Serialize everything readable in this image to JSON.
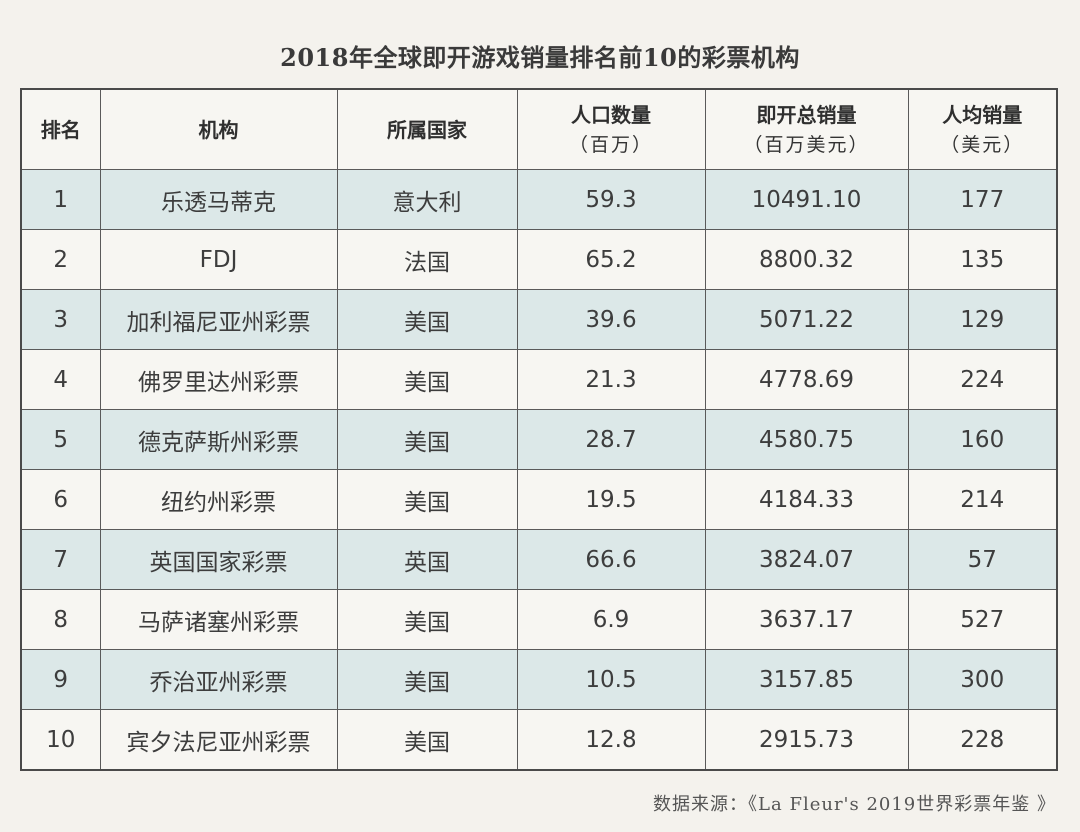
{
  "title": "2018年全球即开游戏销量排名前10的彩票机构",
  "columns": [
    {
      "label": "排名",
      "sub": ""
    },
    {
      "label": "机构",
      "sub": ""
    },
    {
      "label": "所属国家",
      "sub": ""
    },
    {
      "label": "人口数量",
      "sub": "（百万）"
    },
    {
      "label": "即开总销量",
      "sub": "（百万美元）"
    },
    {
      "label": "人均销量",
      "sub": "（美元）"
    }
  ],
  "rows": [
    [
      "1",
      "乐透马蒂克",
      "意大利",
      "59.3",
      "10491.10",
      "177"
    ],
    [
      "2",
      "FDJ",
      "法国",
      "65.2",
      "8800.32",
      "135"
    ],
    [
      "3",
      "加利福尼亚州彩票",
      "美国",
      "39.6",
      "5071.22",
      "129"
    ],
    [
      "4",
      "佛罗里达州彩票",
      "美国",
      "21.3",
      "4778.69",
      "224"
    ],
    [
      "5",
      "德克萨斯州彩票",
      "美国",
      "28.7",
      "4580.75",
      "160"
    ],
    [
      "6",
      "纽约州彩票",
      "美国",
      "19.5",
      "4184.33",
      "214"
    ],
    [
      "7",
      "英国国家彩票",
      "英国",
      "66.6",
      "3824.07",
      "57"
    ],
    [
      "8",
      "马萨诸塞州彩票",
      "美国",
      "6.9",
      "3637.17",
      "527"
    ],
    [
      "9",
      "乔治亚州彩票",
      "美国",
      "10.5",
      "3157.85",
      "300"
    ],
    [
      "10",
      "宾夕法尼亚州彩票",
      "美国",
      "12.8",
      "2915.73",
      "228"
    ]
  ],
  "source": "数据来源：《La Fleur's 2019世界彩票年鉴 》"
}
